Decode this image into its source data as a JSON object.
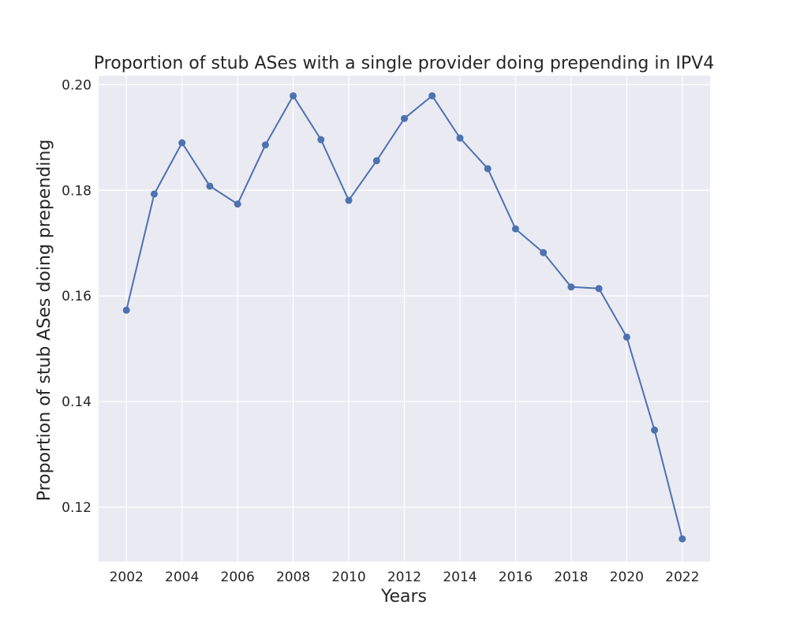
{
  "chart_data": {
    "type": "line",
    "title": "Proportion of stub ASes with a single provider doing prepending in IPV4",
    "xlabel": "Years",
    "ylabel": "Proportion of stub ASes doing prepending",
    "xlim": [
      2001,
      2023
    ],
    "ylim": [
      0.1097,
      0.2017
    ],
    "x_ticks": [
      2002,
      2004,
      2006,
      2008,
      2010,
      2012,
      2014,
      2016,
      2018,
      2020,
      2022
    ],
    "y_ticks": [
      0.12,
      0.14,
      0.16,
      0.18,
      0.2
    ],
    "y_tick_labels": [
      "0.12",
      "0.14",
      "0.16",
      "0.18",
      "0.20"
    ],
    "grid": true,
    "series": [
      {
        "x": [
          2002,
          2003,
          2004,
          2005,
          2006,
          2007,
          2008,
          2009,
          2010,
          2011,
          2012,
          2013,
          2014,
          2015,
          2016,
          2017,
          2018,
          2019,
          2020,
          2021,
          2022
        ],
        "values": [
          0.1573,
          0.1793,
          0.189,
          0.1808,
          0.1774,
          0.1886,
          0.1979,
          0.1896,
          0.1781,
          0.1856,
          0.1936,
          0.1979,
          0.1899,
          0.1841,
          0.1727,
          0.1682,
          0.1617,
          0.1614,
          0.1522,
          0.1346,
          0.114
        ],
        "color": "#4c72b0"
      }
    ],
    "colors": {
      "plot_bg": "#eaeaf2",
      "grid": "#ffffff",
      "text": "#262626"
    }
  }
}
